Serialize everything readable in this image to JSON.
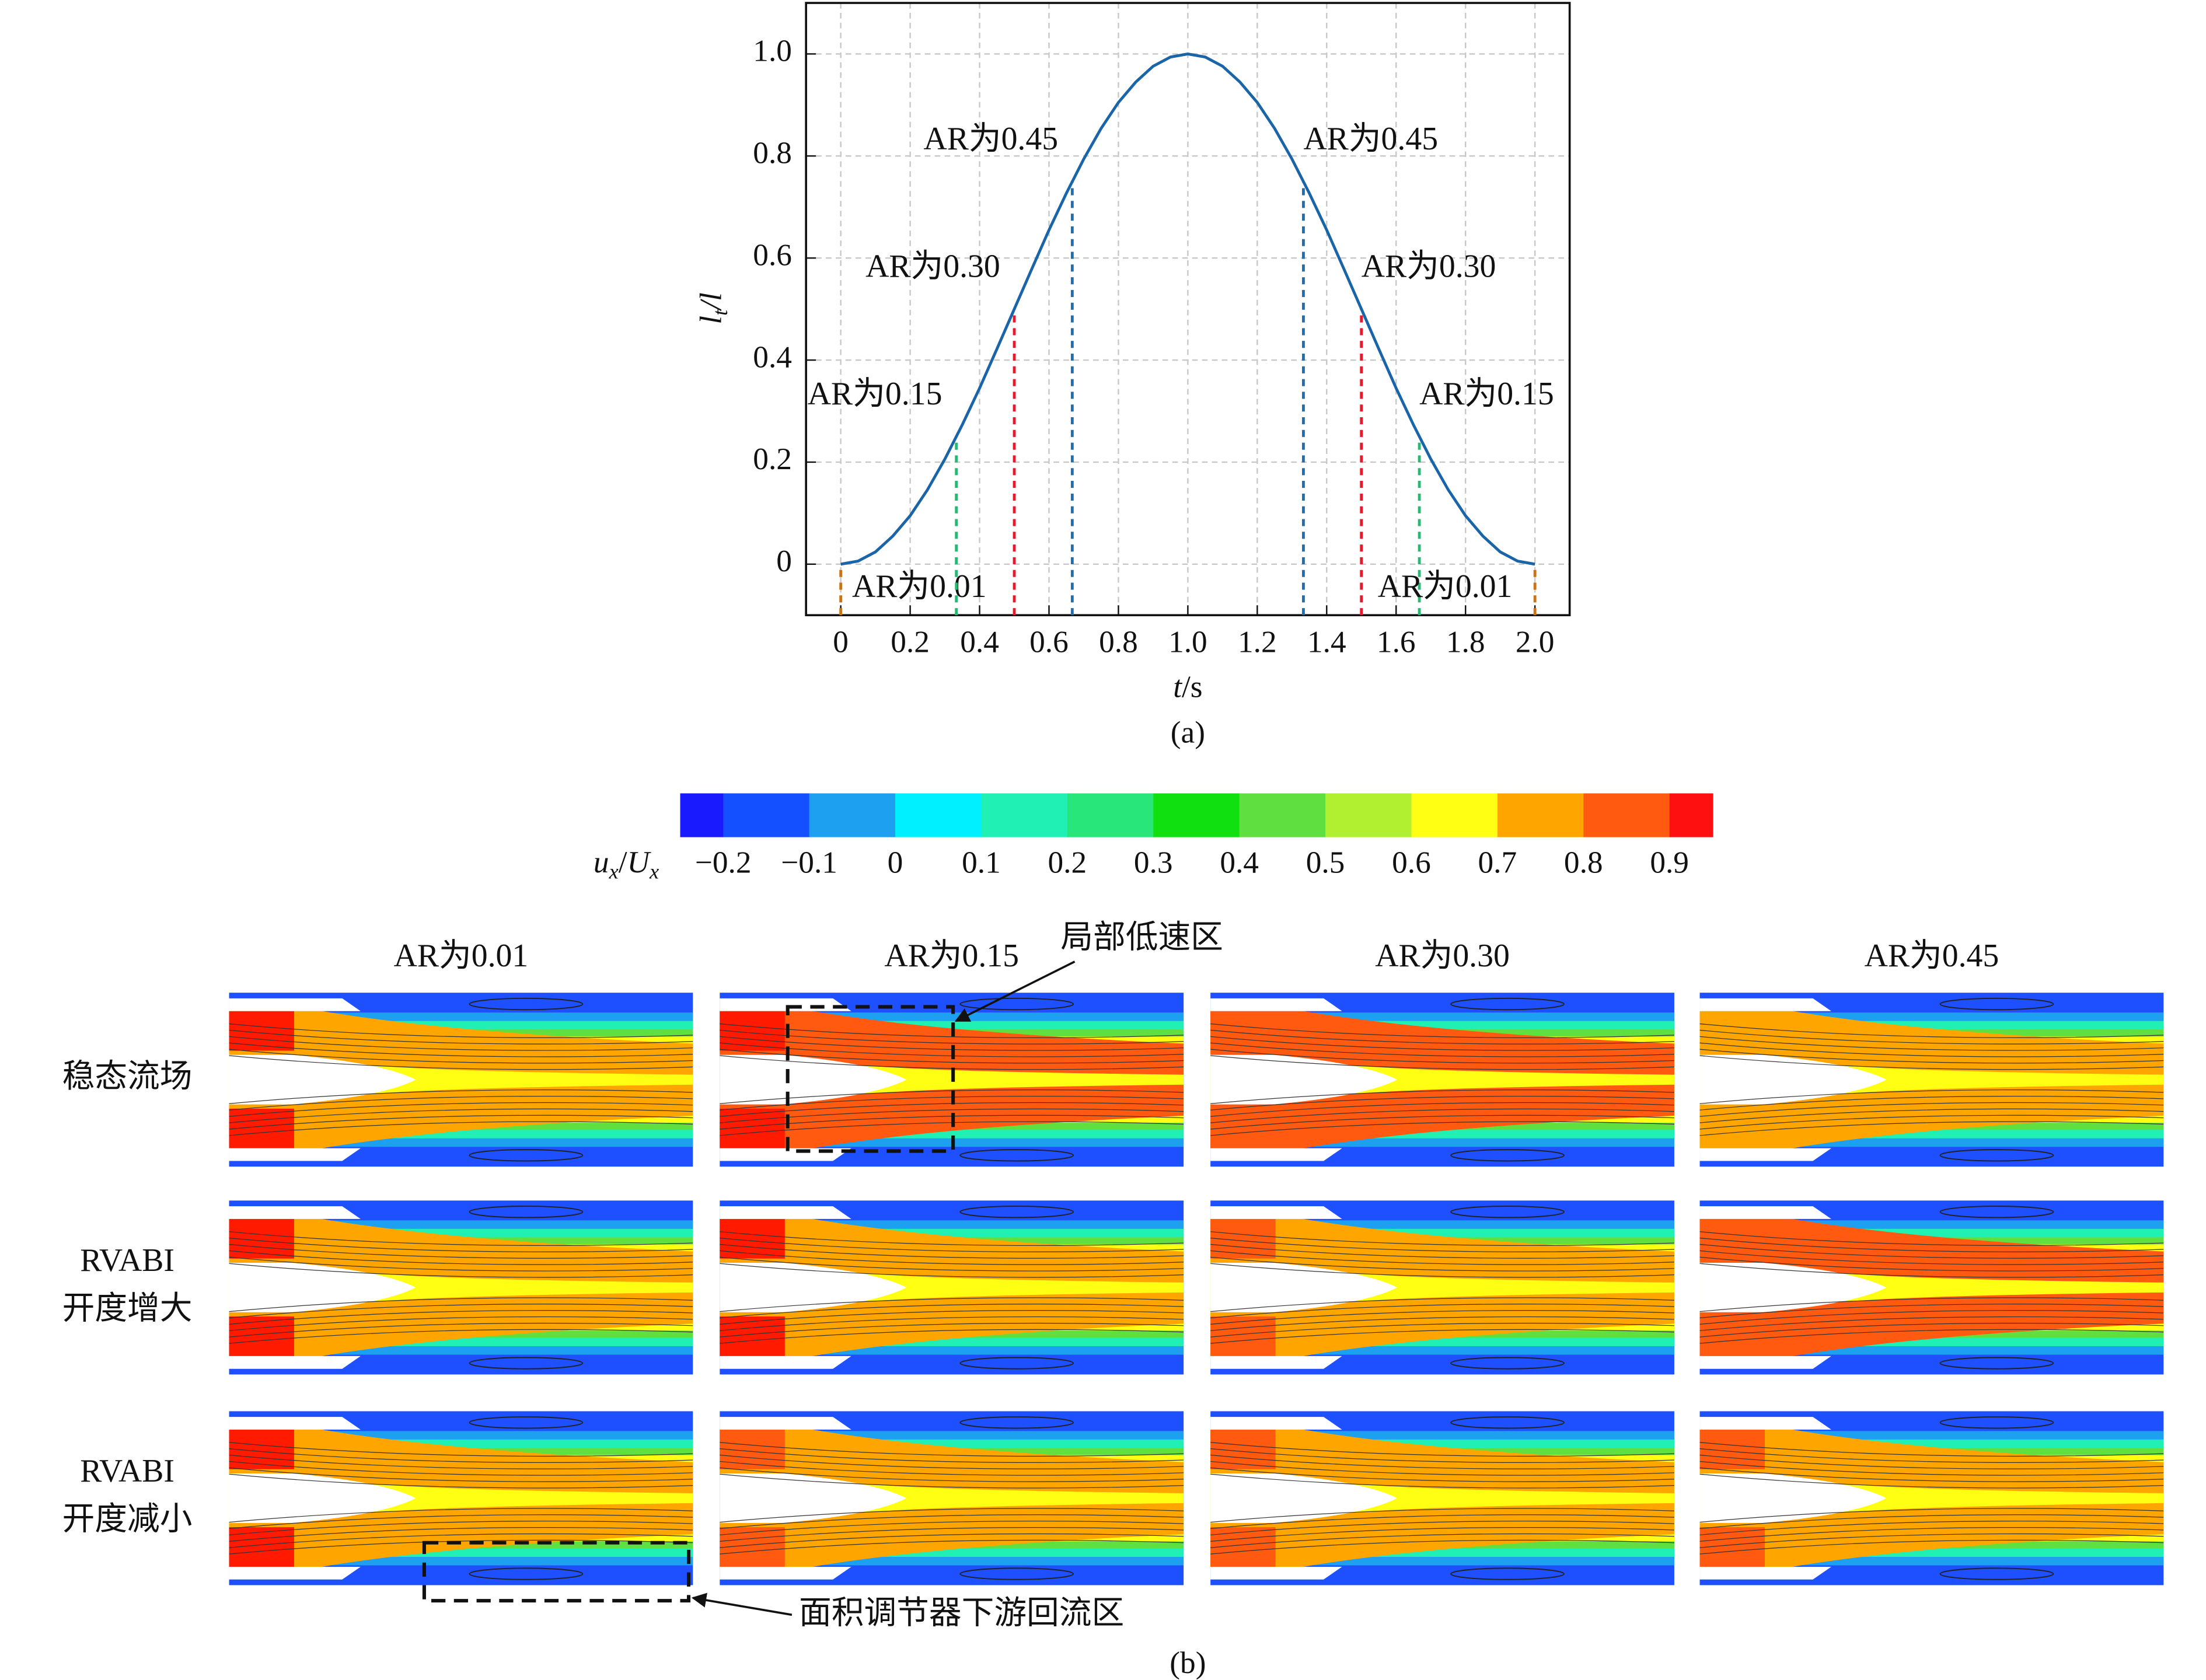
{
  "chart_data": {
    "type": "line",
    "x": [
      0,
      0.05,
      0.1,
      0.15,
      0.2,
      0.25,
      0.3,
      0.35,
      0.4,
      0.45,
      0.5,
      0.55,
      0.6,
      0.65,
      0.7,
      0.75,
      0.8,
      0.85,
      0.9,
      0.95,
      1,
      1.05,
      1.1,
      1.15,
      1.2,
      1.25,
      1.3,
      1.35,
      1.4,
      1.45,
      1.5,
      1.55,
      1.6,
      1.65,
      1.7,
      1.75,
      1.8,
      1.85,
      1.9,
      1.95,
      2
    ],
    "values": [
      0,
      0.006,
      0.024,
      0.055,
      0.095,
      0.146,
      0.206,
      0.273,
      0.345,
      0.422,
      0.5,
      0.578,
      0.655,
      0.727,
      0.794,
      0.854,
      0.905,
      0.945,
      0.976,
      0.994,
      1,
      0.994,
      0.976,
      0.945,
      0.905,
      0.854,
      0.794,
      0.727,
      0.655,
      0.578,
      0.5,
      0.422,
      0.345,
      0.273,
      0.206,
      0.146,
      0.095,
      0.055,
      0.024,
      0.006,
      0
    ],
    "color": "#1a64a8",
    "xlabel": {
      "var": "t",
      "unit": "/s"
    },
    "ylabel": {
      "var": "l",
      "sub": "t",
      "rest": "/l"
    },
    "caption": "(a)",
    "xlim": [
      -0.1,
      2.1
    ],
    "ylim": [
      -0.1,
      1.1
    ],
    "xticks": [
      0,
      0.2,
      0.4,
      0.6,
      0.8,
      {
        "value": 1,
        "label": "1.0"
      },
      1.2,
      1.4,
      1.6,
      1.8,
      {
        "value": 2,
        "label": "2.0"
      }
    ],
    "yticks": [
      0,
      0.2,
      0.4,
      0.6,
      0.8,
      {
        "value": 1,
        "label": "1.0"
      }
    ],
    "grid": true,
    "markers": [
      {
        "label": "AR为0.01",
        "x": 0,
        "y": 0,
        "color": "#c8741a",
        "label_color": "#c8741a"
      },
      {
        "label": "AR为0.15",
        "x": 0.333,
        "y": 0.25,
        "color": "#2bb673",
        "label_color": "#2bb673"
      },
      {
        "label": "AR为0.30",
        "x": 0.5,
        "y": 0.5,
        "color": "#e8192c",
        "label_color": "#e8192c"
      },
      {
        "label": "AR为0.45",
        "x": 0.667,
        "y": 0.75,
        "color": "#1f6fb0",
        "label_color": "#111111"
      },
      {
        "label": "AR为0.45",
        "x": 1.333,
        "y": 0.75,
        "color": "#1f6fb0",
        "label_color": "#111111"
      },
      {
        "label": "AR为0.30",
        "x": 1.5,
        "y": 0.5,
        "color": "#e8192c",
        "label_color": "#e8192c"
      },
      {
        "label": "AR为0.15",
        "x": 1.667,
        "y": 0.25,
        "color": "#2bb673",
        "label_color": "#2bb673"
      },
      {
        "label": "AR为0.01",
        "x": 2,
        "y": 0,
        "color": "#c8741a",
        "label_color": "#c8741a"
      }
    ]
  },
  "colorbar": {
    "label": {
      "var": "u",
      "sub": "x",
      "slash": "/",
      "var2": "U",
      "sub2": "x"
    },
    "lim": [
      -0.25,
      0.95
    ],
    "ticks": [
      {
        "value": -0.2,
        "label": "−0.2"
      },
      {
        "value": -0.1,
        "label": "−0.1"
      },
      0,
      0.1,
      0.2,
      0.3,
      0.4,
      0.5,
      0.6,
      0.7,
      0.8,
      0.9
    ],
    "colors": [
      "#1a1aff",
      "#1450ff",
      "#1ea0f0",
      "#00f0ff",
      "#20f0b4",
      "#28e67a",
      "#10e010",
      "#60e040",
      "#b0f030",
      "#ffff14",
      "#ffa500",
      "#ff5a10",
      "#ff1010"
    ]
  },
  "panels": {
    "columns": [
      "AR为0.01",
      "AR为0.15",
      "AR为0.30",
      "AR为0.45"
    ],
    "rows": [
      [
        "稳态流场"
      ],
      [
        "RVABI",
        "开度增大"
      ],
      [
        "RVABI",
        "开度减小"
      ]
    ],
    "annotations": [
      "局部低速区",
      "面积调节器下游回流区"
    ],
    "caption": "(b)"
  }
}
